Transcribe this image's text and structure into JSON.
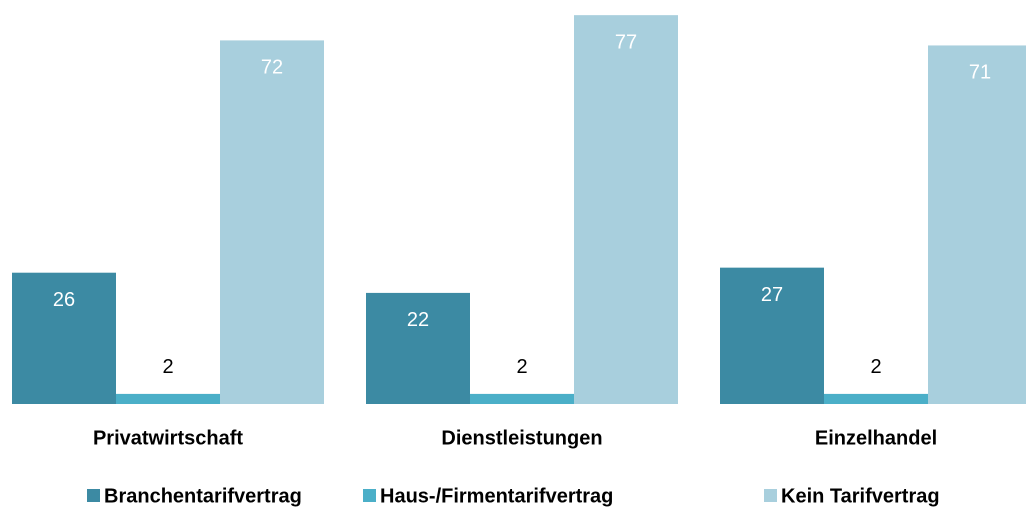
{
  "chart_data": {
    "type": "bar",
    "categories": [
      "Privatwirtschaft",
      "Dienstleistungen",
      "Einzelhandel"
    ],
    "series": [
      {
        "name": "Branchentarifvertrag",
        "color": "#3c8aa3",
        "values": [
          26,
          22,
          27
        ]
      },
      {
        "name": "Haus-/Firmentarifvertrag",
        "color": "#4bafc8",
        "values": [
          2,
          2,
          2
        ]
      },
      {
        "name": "Kein Tarifvertrag",
        "color": "#a8cfdd",
        "values": [
          72,
          77,
          71
        ]
      }
    ]
  }
}
